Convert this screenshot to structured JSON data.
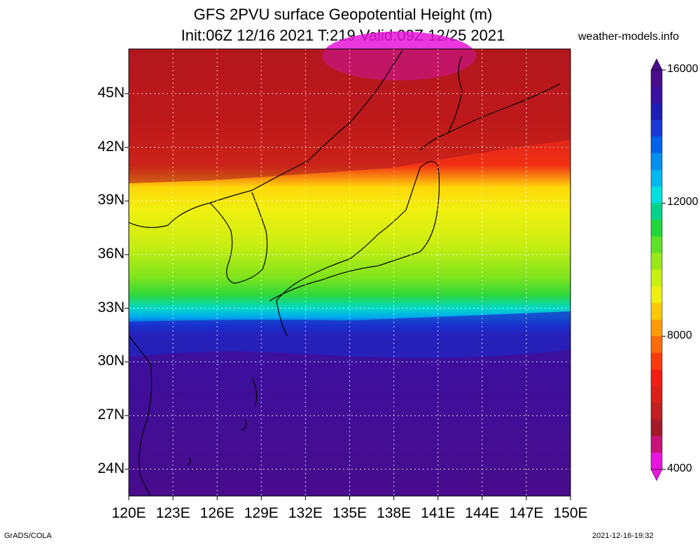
{
  "header": {
    "title_line1": "GFS 2PVU surface Geopotential Height (m)",
    "title_line2": "Init:06Z 12/16 2021 T:219 Valid:09Z 12/25 2021",
    "site": "weather-models.info"
  },
  "map": {
    "lat_labels": [
      "45N",
      "42N",
      "39N",
      "36N",
      "33N",
      "30N",
      "27N",
      "24N"
    ],
    "lon_labels": [
      "120E",
      "123E",
      "126E",
      "129E",
      "132E",
      "135E",
      "138E",
      "141E",
      "144E",
      "147E",
      "150E"
    ],
    "lon_range": [
      120,
      150
    ],
    "lat_range": [
      22.5,
      47.5
    ]
  },
  "colorbar": {
    "labels": [
      "16000",
      "12000",
      "8000",
      "4000"
    ],
    "colors": [
      "#e815e0",
      "#c8127a",
      "#a51a28",
      "#c11f20",
      "#dc2018",
      "#f01e14",
      "#fa3a0c",
      "#ff6a0a",
      "#ff9a08",
      "#ffc80a",
      "#f0f010",
      "#c8f010",
      "#9ae818",
      "#5ee024",
      "#20d838",
      "#00d48a",
      "#00e0e0",
      "#00b8f0",
      "#0090f0",
      "#0062e8",
      "#1a3ad8",
      "#1e1eb4",
      "#3a10a0",
      "#4a0c8c"
    ]
  },
  "footer": {
    "left": "GrADS/COLA",
    "right": "2021-12-16-19:32"
  }
}
